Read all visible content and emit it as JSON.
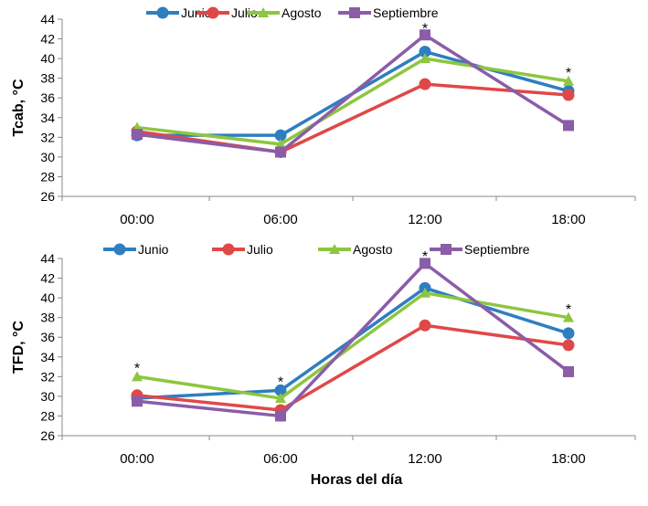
{
  "chart_data": [
    {
      "type": "line",
      "ylabel": "Tcab, °C",
      "xlabel": "",
      "categories": [
        "00:00",
        "06:00",
        "12:00",
        "18:00"
      ],
      "ylim": [
        26,
        44
      ],
      "yticks": [
        "26",
        "28",
        "30",
        "32",
        "34",
        "36",
        "38",
        "40",
        "42",
        "44"
      ],
      "legend_position": "top",
      "series": [
        {
          "name": "Junio",
          "color": "#2E7EC1",
          "marker": "circle",
          "values": [
            32.2,
            32.2,
            40.7,
            36.7
          ]
        },
        {
          "name": "Julio",
          "color": "#E04848",
          "marker": "circle",
          "values": [
            32.6,
            30.5,
            37.4,
            36.3
          ]
        },
        {
          "name": "Agosto",
          "color": "#8DC63F",
          "marker": "triangle",
          "values": [
            33.0,
            31.3,
            40.0,
            37.7
          ]
        },
        {
          "name": "Septiembre",
          "color": "#8B5CA8",
          "marker": "square",
          "values": [
            32.3,
            30.5,
            42.4,
            33.2
          ]
        }
      ],
      "significance": [
        {
          "category": "12:00",
          "mark": "*",
          "at": 43.1
        },
        {
          "category": "18:00",
          "mark": "*",
          "at": 38.6
        }
      ]
    },
    {
      "type": "line",
      "ylabel": "TFD, °C",
      "xlabel": "Horas del día",
      "categories": [
        "00:00",
        "06:00",
        "12:00",
        "18:00"
      ],
      "ylim": [
        26,
        44
      ],
      "yticks": [
        "26",
        "28",
        "30",
        "32",
        "34",
        "36",
        "38",
        "40",
        "42",
        "44"
      ],
      "legend_position": "top",
      "series": [
        {
          "name": "Junio",
          "color": "#2E7EC1",
          "marker": "circle",
          "values": [
            29.8,
            30.6,
            41.0,
            36.4
          ]
        },
        {
          "name": "Julio",
          "color": "#E04848",
          "marker": "circle",
          "values": [
            30.1,
            28.6,
            37.2,
            35.2
          ]
        },
        {
          "name": "Agosto",
          "color": "#8DC63F",
          "marker": "triangle",
          "values": [
            32.0,
            29.8,
            40.5,
            38.0
          ]
        },
        {
          "name": "Septiembre",
          "color": "#8B5CA8",
          "marker": "square",
          "values": [
            29.5,
            28.0,
            43.5,
            32.5
          ]
        }
      ],
      "significance": [
        {
          "category": "00:00",
          "mark": "*",
          "at": 32.9
        },
        {
          "category": "06:00",
          "mark": "*",
          "at": 31.5
        },
        {
          "category": "12:00",
          "mark": "*",
          "at": 44.3
        },
        {
          "category": "18:00",
          "mark": "*",
          "at": 38.9
        }
      ]
    }
  ]
}
